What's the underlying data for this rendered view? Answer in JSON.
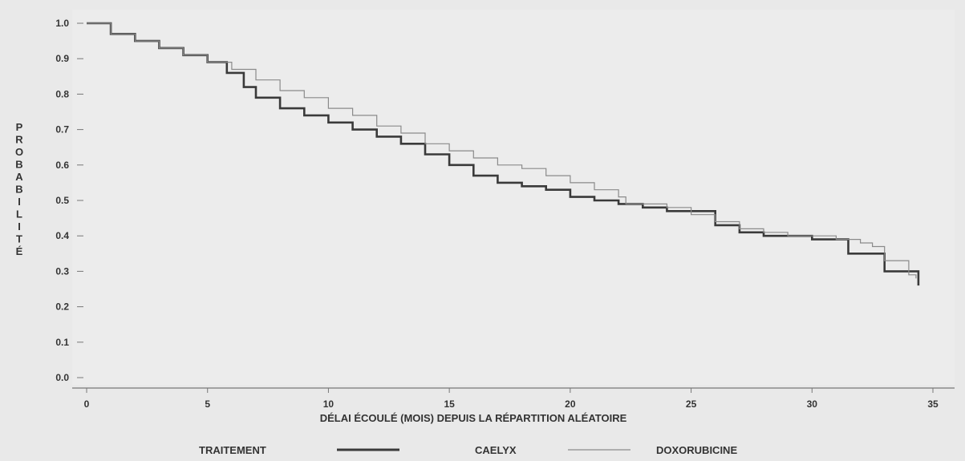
{
  "chart_data": {
    "type": "line",
    "title": "",
    "xlabel": "DÉLAI ÉCOULÉ (MOIS) DEPUIS LA RÉPARTITION ALÉATOIRE",
    "ylabel": "PROBABILITÉ",
    "xlim": [
      0,
      35
    ],
    "ylim": [
      0.0,
      1.0
    ],
    "x_ticks": [
      "0",
      "5",
      "10",
      "15",
      "20",
      "25",
      "30",
      "35"
    ],
    "y_ticks": [
      "0.0",
      "0.1",
      "0.2",
      "0.3",
      "0.4",
      "0.5",
      "0.6",
      "0.7",
      "0.8",
      "0.9",
      "1.0"
    ],
    "grid": false,
    "legend_title": "TRAITEMENT",
    "legend_position": "bottom",
    "series": [
      {
        "name": "CAELYX",
        "color": "#3a3a3a",
        "style": "thick step",
        "x": [
          0,
          1,
          2,
          3,
          4,
          5,
          5.8,
          6.5,
          7,
          8,
          9,
          10,
          11,
          12,
          13,
          14,
          15,
          16,
          17,
          18,
          19,
          20,
          21,
          22,
          23,
          24,
          25,
          26,
          27,
          28,
          29,
          30,
          31,
          31.5,
          32,
          33,
          34,
          34.4,
          34.4
        ],
        "y": [
          1.0,
          0.97,
          0.95,
          0.93,
          0.91,
          0.89,
          0.86,
          0.82,
          0.79,
          0.76,
          0.74,
          0.72,
          0.7,
          0.68,
          0.66,
          0.63,
          0.6,
          0.57,
          0.55,
          0.54,
          0.53,
          0.51,
          0.5,
          0.49,
          0.48,
          0.47,
          0.47,
          0.43,
          0.41,
          0.4,
          0.4,
          0.39,
          0.39,
          0.35,
          0.35,
          0.3,
          0.3,
          0.3,
          0.26
        ]
      },
      {
        "name": "DOXORUBICINE",
        "color": "#8a8a8a",
        "style": "thin step",
        "x": [
          0,
          1,
          2,
          3,
          4,
          5,
          6,
          7,
          8,
          9,
          10,
          11,
          12,
          13,
          14,
          15,
          16,
          17,
          18,
          19,
          20,
          21,
          22,
          22.3,
          23,
          24,
          25,
          26,
          27,
          28,
          29,
          30,
          31,
          32,
          32.5,
          33,
          34,
          34.3
        ],
        "y": [
          1.0,
          0.97,
          0.95,
          0.93,
          0.91,
          0.89,
          0.87,
          0.84,
          0.81,
          0.79,
          0.76,
          0.74,
          0.71,
          0.69,
          0.66,
          0.64,
          0.62,
          0.6,
          0.59,
          0.57,
          0.55,
          0.53,
          0.51,
          0.49,
          0.49,
          0.48,
          0.46,
          0.44,
          0.42,
          0.41,
          0.4,
          0.4,
          0.39,
          0.38,
          0.37,
          0.33,
          0.29,
          0.28
        ]
      }
    ]
  }
}
